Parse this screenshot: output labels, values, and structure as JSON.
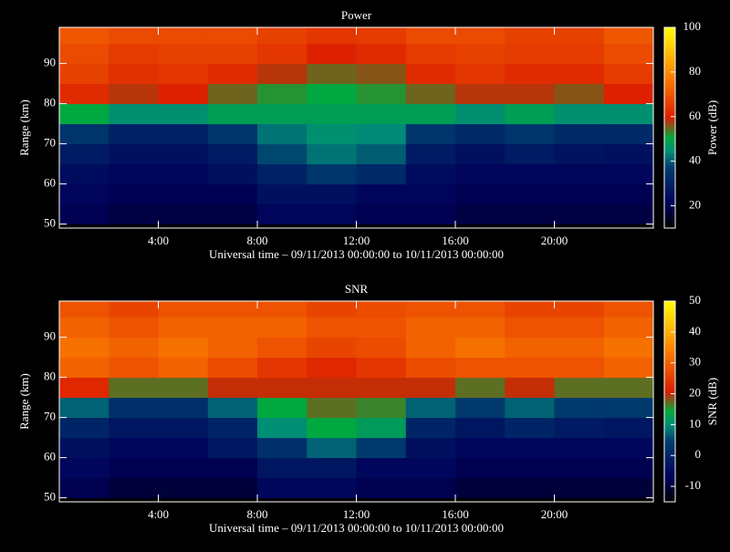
{
  "chart_data": [
    {
      "type": "heatmap",
      "title": "Power",
      "xlabel": "Universal time – 09/11/2013 00:00:00 to 10/11/2013 00:00:00",
      "ylabel": "Range (km)",
      "colorbar_label": "Power (dB)",
      "x": [
        0,
        2,
        4,
        6,
        8,
        10,
        12,
        14,
        16,
        18,
        20,
        22
      ],
      "y": [
        50,
        55,
        60,
        65,
        70,
        75,
        80,
        85,
        90,
        95
      ],
      "values": [
        [
          20,
          18,
          18,
          18,
          22,
          22,
          20,
          20,
          18,
          18,
          18,
          18
        ],
        [
          22,
          20,
          20,
          20,
          25,
          25,
          22,
          22,
          20,
          20,
          20,
          20
        ],
        [
          24,
          22,
          22,
          25,
          30,
          35,
          32,
          24,
          22,
          22,
          22,
          22
        ],
        [
          28,
          25,
          25,
          28,
          38,
          42,
          40,
          28,
          25,
          28,
          26,
          25
        ],
        [
          35,
          30,
          30,
          35,
          42,
          45,
          44,
          35,
          32,
          35,
          32,
          32
        ],
        [
          50,
          45,
          45,
          48,
          48,
          48,
          48,
          48,
          45,
          48,
          45,
          45
        ],
        [
          62,
          58,
          60,
          55,
          52,
          50,
          52,
          55,
          58,
          58,
          56,
          60
        ],
        [
          66,
          63,
          64,
          62,
          58,
          55,
          56,
          62,
          64,
          62,
          62,
          65
        ],
        [
          68,
          65,
          66,
          66,
          64,
          60,
          62,
          65,
          66,
          65,
          65,
          68
        ],
        [
          70,
          68,
          68,
          68,
          66,
          64,
          65,
          68,
          68,
          66,
          66,
          70
        ]
      ],
      "xlim": [
        0,
        24
      ],
      "ylim": [
        49,
        99
      ],
      "xticks": [
        {
          "value": 4,
          "label": "4:00"
        },
        {
          "value": 8,
          "label": "8:00"
        },
        {
          "value": 12,
          "label": "12:00"
        },
        {
          "value": 16,
          "label": "16:00"
        },
        {
          "value": 20,
          "label": "20:00"
        }
      ],
      "yticks": [
        50,
        60,
        70,
        80,
        90
      ],
      "clim": [
        10,
        100
      ],
      "cticks": [
        20,
        40,
        60,
        80,
        100
      ]
    },
    {
      "type": "heatmap",
      "title": "SNR",
      "xlabel": "Universal time – 09/11/2013 00:00:00 to 10/11/2013 00:00:00",
      "ylabel": "Range (km)",
      "colorbar_label": "SNR (dB)",
      "x": [
        0,
        2,
        4,
        6,
        8,
        10,
        12,
        14,
        16,
        18,
        20,
        22
      ],
      "y": [
        50,
        55,
        60,
        65,
        70,
        75,
        80,
        85,
        90,
        95
      ],
      "values": [
        [
          -8,
          -10,
          -10,
          -10,
          -6,
          -6,
          -8,
          -8,
          -10,
          -10,
          -10,
          -10
        ],
        [
          -6,
          -8,
          -8,
          -8,
          -3,
          -3,
          -6,
          -6,
          -8,
          -8,
          -8,
          -8
        ],
        [
          -4,
          -6,
          -6,
          -3,
          2,
          7,
          4,
          -4,
          -6,
          -6,
          -6,
          -6
        ],
        [
          0,
          -3,
          -3,
          0,
          10,
          14,
          12,
          0,
          -3,
          0,
          -2,
          -3
        ],
        [
          7,
          2,
          2,
          7,
          14,
          17,
          16,
          7,
          4,
          7,
          4,
          4
        ],
        [
          22,
          17,
          17,
          20,
          20,
          20,
          20,
          20,
          17,
          20,
          17,
          17
        ],
        [
          30,
          28,
          30,
          27,
          24,
          22,
          24,
          27,
          28,
          28,
          28,
          30
        ],
        [
          32,
          30,
          32,
          30,
          28,
          26,
          27,
          30,
          32,
          30,
          30,
          32
        ],
        [
          30,
          28,
          30,
          30,
          30,
          28,
          28,
          30,
          30,
          28,
          28,
          30
        ],
        [
          28,
          26,
          28,
          28,
          28,
          26,
          27,
          28,
          28,
          26,
          26,
          28
        ]
      ],
      "xlim": [
        0,
        24
      ],
      "ylim": [
        49,
        99
      ],
      "xticks": [
        {
          "value": 4,
          "label": "4:00"
        },
        {
          "value": 8,
          "label": "8:00"
        },
        {
          "value": 12,
          "label": "12:00"
        },
        {
          "value": 16,
          "label": "16:00"
        },
        {
          "value": 20,
          "label": "20:00"
        }
      ],
      "yticks": [
        50,
        60,
        70,
        80,
        90
      ],
      "clim": [
        -15,
        50
      ],
      "cticks": [
        -10,
        0,
        10,
        20,
        30,
        40,
        50
      ]
    }
  ]
}
